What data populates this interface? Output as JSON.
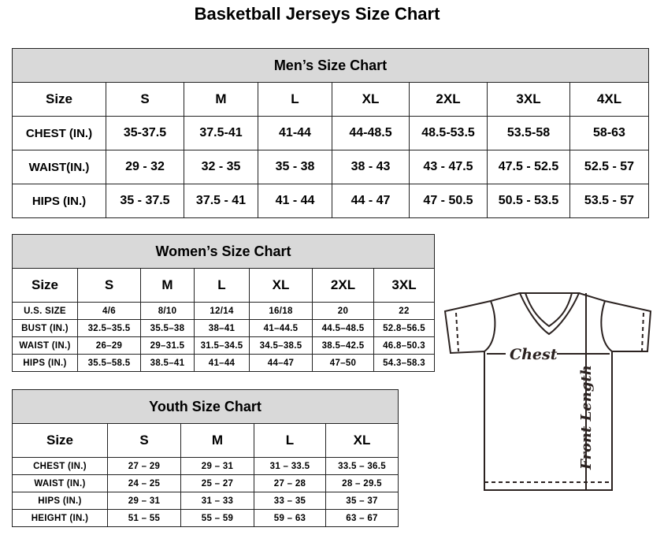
{
  "title": "Basketball Jerseys Size Chart",
  "men": {
    "title": "Men’s Size Chart",
    "sizes": [
      "Size",
      "S",
      "M",
      "L",
      "XL",
      "2XL",
      "3XL",
      "4XL"
    ],
    "rows": [
      [
        "CHEST (IN.)",
        "35-37.5",
        "37.5-41",
        "41-44",
        "44-48.5",
        "48.5-53.5",
        "53.5-58",
        "58-63"
      ],
      [
        "WAIST(IN.)",
        "29 - 32",
        "32 - 35",
        "35 - 38",
        "38 - 43",
        "43 - 47.5",
        "47.5 - 52.5",
        "52.5 - 57"
      ],
      [
        "HIPS (IN.)",
        "35 - 37.5",
        "37.5 - 41",
        "41 - 44",
        "44 - 47",
        "47 - 50.5",
        "50.5 - 53.5",
        "53.5 - 57"
      ]
    ]
  },
  "women": {
    "title": "Women’s Size Chart",
    "sizes": [
      "Size",
      "S",
      "M",
      "L",
      "XL",
      "2XL",
      "3XL"
    ],
    "rows": [
      [
        "U.S.  SIZE",
        "4/6",
        "8/10",
        "12/14",
        "16/18",
        "20",
        "22"
      ],
      [
        "BUST  (IN.)",
        "32.5–35.5",
        "35.5–38",
        "38–41",
        "41–44.5",
        "44.5–48.5",
        "52.8–56.5"
      ],
      [
        "WAIST  (IN.)",
        "26–29",
        "29–31.5",
        "31.5–34.5",
        "34.5–38.5",
        "38.5–42.5",
        "46.8–50.3"
      ],
      [
        "HIPS  (IN.)",
        "35.5–58.5",
        "38.5–41",
        "41–44",
        "44–47",
        "47–50",
        "54.3–58.3"
      ]
    ]
  },
  "youth": {
    "title": "Youth Size Chart",
    "sizes": [
      "Size",
      "S",
      "M",
      "L",
      "XL"
    ],
    "rows": [
      [
        "CHEST  (IN.)",
        "27  –  29",
        "29  –  31",
        "31  –  33.5",
        "33.5  –  36.5"
      ],
      [
        "WAIST  (IN.)",
        "24  –  25",
        "25  –  27",
        "27  –  28",
        "28  –  29.5"
      ],
      [
        "HIPS  (IN.)",
        "29  –  31",
        "31  –  33",
        "33  –  35",
        "35  –  37"
      ],
      [
        "HEIGHT  (IN.)",
        "51  –  55",
        "55  –  59",
        "59  –  63",
        "63  –  67"
      ]
    ]
  },
  "diagram": {
    "chest_label": "Chest",
    "length_label": "Front Length"
  }
}
